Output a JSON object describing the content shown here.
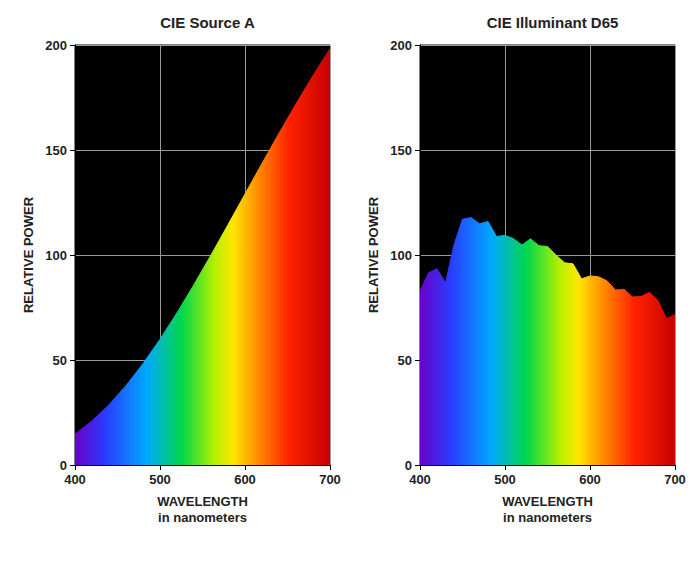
{
  "chart_data": [
    {
      "type": "area",
      "title": "CIE Source A",
      "x_label": "WAVELENGTH\nin nanometers",
      "y_label": "RELATIVE POWER",
      "x": [
        400,
        420,
        440,
        460,
        480,
        500,
        520,
        540,
        560,
        580,
        600,
        620,
        640,
        660,
        680,
        700
      ],
      "values": [
        14.71,
        20.99,
        28.7,
        37.81,
        48.24,
        59.86,
        72.5,
        85.95,
        100,
        114.44,
        129.04,
        143.62,
        157.98,
        171.96,
        185.43,
        198.26
      ],
      "xlim": [
        400,
        700
      ],
      "xticks": [
        400,
        500,
        600,
        700
      ],
      "ylim": [
        0,
        200
      ],
      "yticks": [
        0,
        50,
        100,
        150,
        200
      ],
      "grid": true
    },
    {
      "type": "area",
      "title": "CIE Illuminant D65",
      "x_label": "WAVELENGTH\nin nanometers",
      "y_label": "RELATIVE POWER",
      "x": [
        400,
        410,
        420,
        430,
        440,
        450,
        460,
        470,
        480,
        490,
        500,
        510,
        520,
        530,
        540,
        550,
        560,
        570,
        580,
        590,
        600,
        610,
        620,
        630,
        640,
        650,
        660,
        670,
        680,
        690,
        700
      ],
      "values": [
        82.75,
        91.49,
        93.43,
        86.68,
        104.86,
        117.01,
        117.81,
        114.86,
        115.92,
        108.81,
        109.35,
        107.8,
        104.79,
        107.69,
        104.41,
        104.05,
        100,
        96.33,
        95.79,
        88.69,
        90.01,
        89.6,
        87.7,
        83.29,
        83.7,
        80.03,
        80.21,
        82.28,
        78.28,
        69.72,
        71.61
      ],
      "xlim": [
        400,
        700
      ],
      "xticks": [
        400,
        500,
        600,
        700
      ],
      "ylim": [
        0,
        200
      ],
      "yticks": [
        0,
        50,
        100,
        150,
        200
      ],
      "grid": true
    }
  ]
}
